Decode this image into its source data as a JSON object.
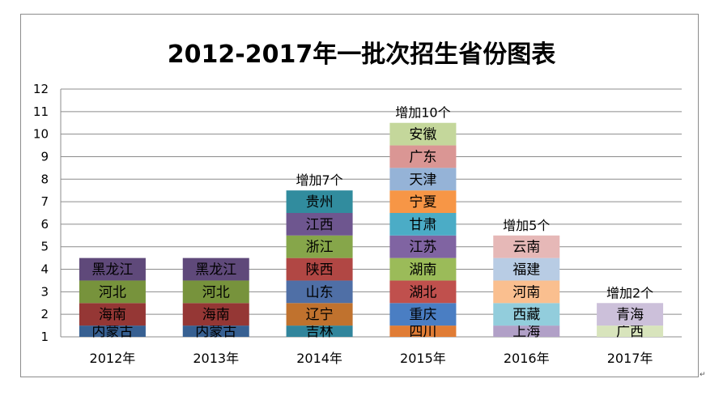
{
  "chart_data": {
    "type": "bar",
    "title": "2012-2017年一批次招生省份图表",
    "xlabel": "",
    "ylabel": "",
    "ylim": [
      1,
      12
    ],
    "yticks": [
      1,
      2,
      3,
      4,
      5,
      6,
      7,
      8,
      9,
      10,
      11,
      12
    ],
    "grid": true,
    "categories": [
      "2012年",
      "2013年",
      "2014年",
      "2015年",
      "2016年",
      "2017年"
    ],
    "values": [
      5,
      5,
      8,
      11,
      6,
      3
    ],
    "annotations": [
      "",
      "",
      "增加7个",
      "增加10个",
      "增加5个",
      "增加2个"
    ],
    "stacks": [
      {
        "category": "2012年",
        "segments": [
          {
            "label": "内蒙古",
            "color": "#376092"
          },
          {
            "label": "海南",
            "color": "#953735"
          },
          {
            "label": "河北",
            "color": "#77933c"
          },
          {
            "label": "黑龙江",
            "color": "#5f497a"
          }
        ]
      },
      {
        "category": "2013年",
        "segments": [
          {
            "label": "内蒙古",
            "color": "#376092"
          },
          {
            "label": "海南",
            "color": "#953735"
          },
          {
            "label": "河北",
            "color": "#77933c"
          },
          {
            "label": "黑龙江",
            "color": "#5f497a"
          }
        ]
      },
      {
        "category": "2014年",
        "segments": [
          {
            "label": "吉林",
            "color": "#31859c"
          },
          {
            "label": "辽宁",
            "color": "#c0722e"
          },
          {
            "label": "山东",
            "color": "#4f6fa6"
          },
          {
            "label": "陕西",
            "color": "#b14744"
          },
          {
            "label": "浙江",
            "color": "#86a64a"
          },
          {
            "label": "江西",
            "color": "#6e568f"
          },
          {
            "label": "贵州",
            "color": "#318c9e"
          }
        ]
      },
      {
        "category": "2015年",
        "segments": [
          {
            "label": "四川",
            "color": "#e07c35"
          },
          {
            "label": "重庆",
            "color": "#4a7ec3"
          },
          {
            "label": "湖北",
            "color": "#c0504d"
          },
          {
            "label": "湖南",
            "color": "#9bbb59"
          },
          {
            "label": "江苏",
            "color": "#8064a2"
          },
          {
            "label": "甘肃",
            "color": "#4bacc6"
          },
          {
            "label": "宁夏",
            "color": "#f79646"
          },
          {
            "label": "天津",
            "color": "#95b3d7"
          },
          {
            "label": "广东",
            "color": "#da9694"
          },
          {
            "label": "安徽",
            "color": "#c4d79b"
          }
        ]
      },
      {
        "category": "2016年",
        "segments": [
          {
            "label": "上海",
            "color": "#b1a0c7"
          },
          {
            "label": "西藏",
            "color": "#92cddc"
          },
          {
            "label": "河南",
            "color": "#fabf8f"
          },
          {
            "label": "福建",
            "color": "#b8cce4"
          },
          {
            "label": "云南",
            "color": "#e6b8b7"
          }
        ]
      },
      {
        "category": "2017年",
        "segments": [
          {
            "label": "广西",
            "color": "#d8e4bc"
          },
          {
            "label": "青海",
            "color": "#ccc0da"
          }
        ]
      }
    ]
  },
  "colors": {
    "grid": "#8c8c8c",
    "axis": "#8c8c8c",
    "text": "#000000"
  }
}
